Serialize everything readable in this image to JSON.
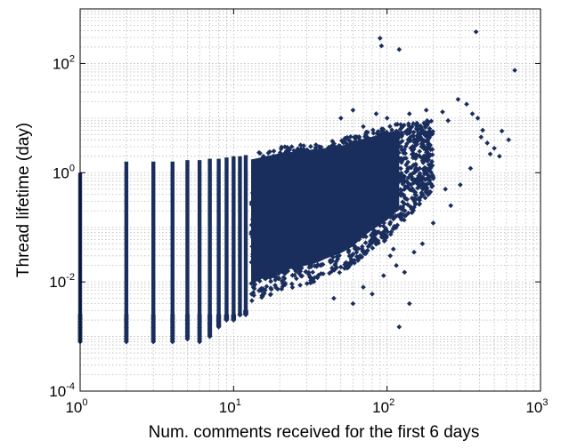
{
  "chart_data": {
    "type": "scatter",
    "xlabel": "Num. comments received for the first 6 days",
    "ylabel": "Thread lifetime (day)",
    "x_scale": "log",
    "y_scale": "log",
    "xlim": [
      1,
      1000
    ],
    "ylim": [
      0.0001,
      1000
    ],
    "x_ticks": [
      {
        "base": "10",
        "exp": "0",
        "value": 1
      },
      {
        "base": "10",
        "exp": "1",
        "value": 10
      },
      {
        "base": "10",
        "exp": "2",
        "value": 100
      },
      {
        "base": "10",
        "exp": "3",
        "value": 1000
      }
    ],
    "y_ticks": [
      {
        "base": "10",
        "exp": "-4",
        "value": 0.0001
      },
      {
        "base": "10",
        "exp": "-2",
        "value": 0.01
      },
      {
        "base": "10",
        "exp": "0",
        "value": 1
      },
      {
        "base": "10",
        "exp": "2",
        "value": 100
      }
    ],
    "grid": true,
    "marker_color": "#1a2e5e",
    "series": [
      {
        "columns": [
          {
            "x": 1,
            "y_min": 0.0008,
            "y_max": 1.0
          },
          {
            "x": 2,
            "y_min": 0.0008,
            "y_max": 1.6
          },
          {
            "x": 3,
            "y_min": 0.0008,
            "y_max": 1.6
          },
          {
            "x": 4,
            "y_min": 0.0008,
            "y_max": 1.6
          },
          {
            "x": 5,
            "y_min": 0.0009,
            "y_max": 1.7
          },
          {
            "x": 6,
            "y_min": 0.0008,
            "y_max": 1.7
          },
          {
            "x": 7,
            "y_min": 0.001,
            "y_max": 1.8
          },
          {
            "x": 8,
            "y_min": 0.0015,
            "y_max": 1.8
          },
          {
            "x": 9,
            "y_min": 0.002,
            "y_max": 1.9
          },
          {
            "x": 10,
            "y_min": 0.002,
            "y_max": 2.0
          },
          {
            "x": 11,
            "y_min": 0.0025,
            "y_max": 2.0
          },
          {
            "x": 12,
            "y_min": 0.003,
            "y_max": 2.1
          }
        ],
        "cloud": [
          [
            13,
            0.004,
            2.3
          ],
          [
            15,
            0.005,
            2.5
          ],
          [
            18,
            0.006,
            2.8
          ],
          [
            20,
            0.007,
            3.0
          ],
          [
            25,
            0.008,
            3.2
          ],
          [
            30,
            0.009,
            3.4
          ],
          [
            35,
            0.01,
            3.6
          ],
          [
            40,
            0.012,
            3.7
          ],
          [
            50,
            0.015,
            4.0
          ],
          [
            60,
            0.02,
            5.0
          ],
          [
            70,
            0.03,
            5.5
          ],
          [
            80,
            0.04,
            6.0
          ],
          [
            100,
            0.06,
            7.0
          ],
          [
            120,
            0.1,
            8.0
          ],
          [
            150,
            0.2,
            8.0
          ],
          [
            200,
            0.5,
            10.0
          ]
        ],
        "points": [
          [
            380,
            380
          ],
          [
            90,
            290
          ],
          [
            120,
            180
          ],
          [
            680,
            75
          ],
          [
            92,
            210
          ],
          [
            290,
            22
          ],
          [
            360,
            12
          ],
          [
            390,
            10
          ],
          [
            450,
            3.5
          ],
          [
            500,
            2.8
          ],
          [
            560,
            5.8
          ],
          [
            620,
            4.0
          ],
          [
            420,
            6.0
          ],
          [
            250,
            9.0
          ],
          [
            230,
            13.0
          ],
          [
            330,
            18.0
          ],
          [
            410,
            4.5
          ],
          [
            470,
            2.2
          ],
          [
            540,
            2.0
          ],
          [
            180,
            14.0
          ],
          [
            140,
            12.0
          ],
          [
            100,
            10.0
          ],
          [
            85,
            12.0
          ],
          [
            70,
            7.0
          ],
          [
            60,
            14.0
          ],
          [
            50,
            10.0
          ],
          [
            110,
            0.04
          ],
          [
            105,
            0.03
          ],
          [
            115,
            0.02
          ],
          [
            95,
            0.013
          ],
          [
            150,
            0.035
          ],
          [
            200,
            0.12
          ],
          [
            260,
            0.25
          ],
          [
            300,
            0.6
          ],
          [
            350,
            1.2
          ],
          [
            120,
            0.0015
          ],
          [
            60,
            0.004
          ],
          [
            45,
            0.005
          ],
          [
            160,
            0.8
          ],
          [
            240,
            0.5
          ],
          [
            140,
            0.004
          ],
          [
            70,
            0.008
          ],
          [
            80,
            0.006
          ],
          [
            130,
            0.015
          ],
          [
            170,
            0.05
          ]
        ]
      }
    ]
  }
}
